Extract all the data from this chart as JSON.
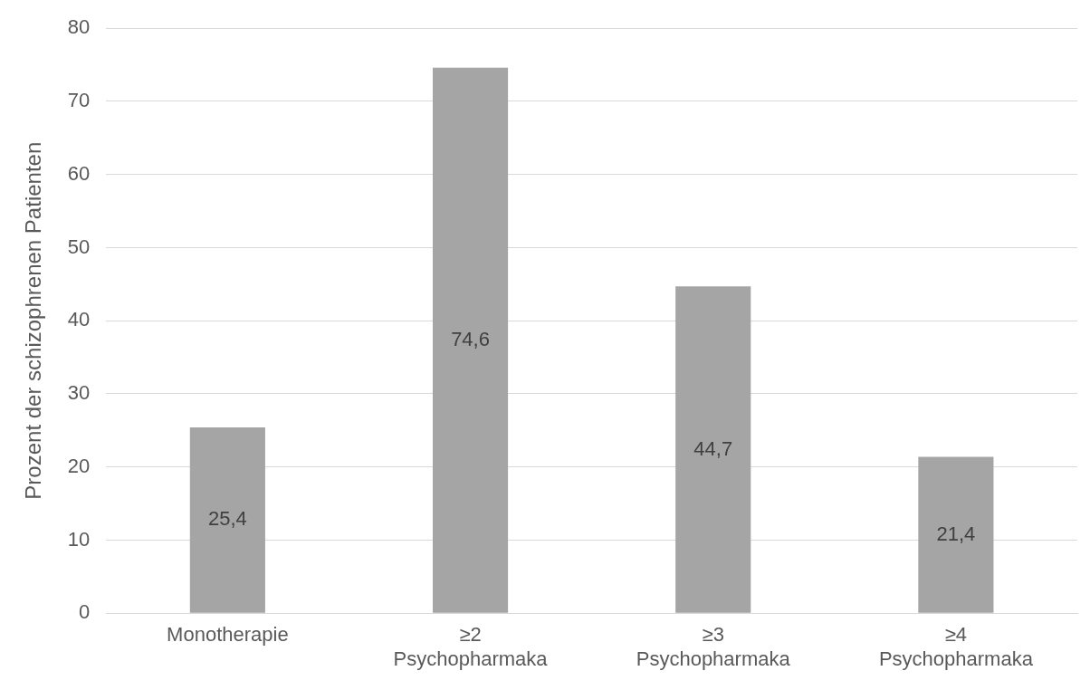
{
  "chart_data": {
    "type": "bar",
    "ylabel": "Prozent der schizophrenen Patienten",
    "categories": [
      "Monotherapie",
      "≥2 Psychopharmaka",
      "≥3 Psychopharmaka",
      "≥4 Psychopharmaka"
    ],
    "values": [
      25.4,
      74.6,
      44.7,
      21.4
    ],
    "value_labels": [
      "25,4",
      "74,6",
      "44,7",
      "21,4"
    ],
    "color": "#a5a5a5",
    "ylim": [
      0,
      80
    ],
    "yticks": [
      0,
      10,
      20,
      30,
      40,
      50,
      60,
      70,
      80
    ],
    "grid": "y",
    "legend": false
  }
}
